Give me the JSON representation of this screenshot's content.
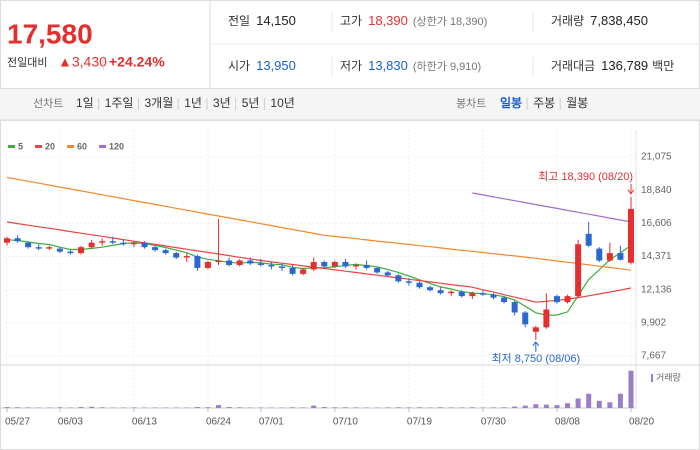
{
  "header": {
    "price": "17,580",
    "change_label": "전일대비",
    "change": "▲3,430",
    "change_pct": "+24.24%",
    "stats": [
      {
        "label": "전일",
        "value": "14,150"
      },
      {
        "label": "고가",
        "value": "18,390",
        "note": "(상한가 18,390)",
        "color": "#e52f2f"
      },
      {
        "label": "거래량",
        "value": "7,838,450"
      },
      {
        "label": "시가",
        "value": "13,950",
        "color": "#1a5fd1"
      },
      {
        "label": "저가",
        "value": "13,830",
        "note": "(하한가 9,910)",
        "color": "#1a5fd1"
      },
      {
        "label": "거래대금",
        "value": "136,789",
        "unit": "백만"
      }
    ]
  },
  "toolbar": {
    "line_label": "선차트",
    "periods": [
      "1일",
      "1주일",
      "3개월",
      "1년",
      "3년",
      "5년",
      "10년"
    ],
    "candle_label": "봉차트",
    "candle_periods": [
      "일봉",
      "주봉",
      "월봉"
    ],
    "active_candle_period": 0
  },
  "chart_data": {
    "type": "candlestick",
    "categories": [
      "05/27",
      null,
      null,
      null,
      null,
      "06/03",
      null,
      null,
      null,
      null,
      null,
      null,
      "06/13",
      null,
      null,
      null,
      null,
      null,
      null,
      "06/24",
      null,
      null,
      null,
      null,
      "07/01",
      null,
      null,
      null,
      null,
      null,
      null,
      "07/10",
      null,
      null,
      null,
      null,
      null,
      null,
      "07/19",
      null,
      null,
      null,
      null,
      null,
      null,
      "07/30",
      null,
      null,
      null,
      null,
      null,
      null,
      "08/08",
      null,
      null,
      null,
      null,
      null,
      null,
      "08/20"
    ],
    "open": [
      15300,
      15600,
      15300,
      15000,
      14900,
      14900,
      14700,
      14600,
      15000,
      15300,
      15400,
      15300,
      15200,
      15300,
      15000,
      14800,
      14600,
      14300,
      14400,
      13600,
      14000,
      14100,
      13800,
      14100,
      13900,
      13800,
      13700,
      13600,
      13200,
      13500,
      14000,
      13700,
      14000,
      13700,
      13800,
      13600,
      13300,
      13100,
      12700,
      12600,
      12300,
      12100,
      11900,
      12000,
      11700,
      11900,
      11800,
      11600,
      11300,
      10600,
      9300,
      9600,
      11700,
      11300,
      11700,
      15900,
      14900,
      14100,
      14600,
      13950
    ],
    "high": [
      15700,
      15800,
      15400,
      15200,
      15100,
      15000,
      14800,
      15100,
      15500,
      15600,
      15700,
      15500,
      15400,
      15400,
      15100,
      14900,
      14700,
      14600,
      14500,
      14100,
      16900,
      14300,
      14200,
      14300,
      14200,
      14000,
      13900,
      13800,
      13600,
      14300,
      14100,
      14100,
      14200,
      13900,
      14100,
      13700,
      13400,
      13200,
      12900,
      12700,
      12400,
      12300,
      12100,
      12100,
      12000,
      12100,
      11900,
      11700,
      11400,
      10700,
      9700,
      11900,
      11800,
      11800,
      15500,
      16700,
      15000,
      15300,
      15100,
      18390
    ],
    "low": [
      15100,
      15300,
      14900,
      14800,
      14800,
      14600,
      14500,
      14500,
      14900,
      15100,
      15200,
      15100,
      15000,
      14900,
      14700,
      14500,
      14200,
      14000,
      13400,
      13500,
      13800,
      13700,
      13700,
      13800,
      13700,
      13500,
      13400,
      13100,
      13100,
      13400,
      13600,
      13600,
      13600,
      13500,
      13500,
      13200,
      13000,
      12600,
      12400,
      12200,
      12000,
      11800,
      11700,
      11600,
      11500,
      11700,
      11500,
      11200,
      10400,
      9600,
      8750,
      9500,
      11200,
      11200,
      11600,
      15000,
      14000,
      14000,
      14100,
      13830
    ],
    "close": [
      15600,
      15400,
      15000,
      14900,
      15000,
      14700,
      14600,
      15000,
      15300,
      15400,
      15300,
      15200,
      15300,
      15000,
      14800,
      14600,
      14300,
      14400,
      13600,
      14000,
      14100,
      13800,
      14100,
      13900,
      13800,
      13700,
      13600,
      13200,
      13500,
      14000,
      13700,
      14000,
      13700,
      13800,
      13600,
      13300,
      13100,
      12700,
      12600,
      12300,
      12100,
      11900,
      12000,
      11700,
      11900,
      11800,
      11600,
      11300,
      10600,
      9800,
      9600,
      10800,
      11300,
      11700,
      15200,
      15100,
      14100,
      14600,
      14150,
      17580
    ],
    "up_color": "#e52f2f",
    "down_color": "#2a68d0",
    "ma": [
      {
        "name": "5",
        "color": "#3fae3f",
        "values": [
          15500,
          15450,
          15350,
          15250,
          15180,
          15000,
          14840,
          14840,
          14920,
          15000,
          15120,
          15240,
          15300,
          15240,
          15120,
          14980,
          14800,
          14620,
          14340,
          14180,
          14080,
          13980,
          13920,
          13980,
          13940,
          13860,
          13820,
          13640,
          13560,
          13600,
          13600,
          13680,
          13780,
          13840,
          13760,
          13680,
          13500,
          13300,
          13060,
          12800,
          12560,
          12320,
          12180,
          12000,
          11920,
          11860,
          11800,
          11660,
          11440,
          11020,
          10580,
          10420,
          10420,
          10640,
          11720,
          12820,
          13480,
          14140,
          14630,
          15110
        ]
      },
      {
        "name": "20",
        "color": "#e84545",
        "values": [
          16700,
          16590,
          16480,
          16370,
          16270,
          16160,
          16050,
          15940,
          15830,
          15730,
          15620,
          15510,
          15400,
          15290,
          15190,
          15080,
          14970,
          14860,
          14750,
          14650,
          14540,
          14430,
          14320,
          14210,
          14100,
          14010,
          13920,
          13830,
          13740,
          13650,
          13560,
          13470,
          13380,
          13290,
          13200,
          13110,
          13020,
          12930,
          12840,
          12750,
          12660,
          12570,
          12480,
          12390,
          12300,
          12130,
          11970,
          11800,
          11630,
          11470,
          11300,
          11350,
          11420,
          11500,
          11600,
          11720,
          11850,
          11980,
          12110,
          12250
        ]
      },
      {
        "name": "60",
        "color": "#f08a2a",
        "values": [
          19700,
          19570,
          19440,
          19310,
          19180,
          19050,
          18920,
          18790,
          18660,
          18530,
          18400,
          18270,
          18140,
          18010,
          17880,
          17750,
          17620,
          17490,
          17360,
          17230,
          17100,
          16970,
          16840,
          16710,
          16580,
          16450,
          16320,
          16190,
          16060,
          15930,
          15800,
          15720,
          15650,
          15570,
          15490,
          15410,
          15340,
          15260,
          15180,
          15100,
          15030,
          14950,
          14870,
          14790,
          14720,
          14640,
          14560,
          14480,
          14410,
          14330,
          14250,
          14160,
          14070,
          13980,
          13900,
          13810,
          13720,
          13630,
          13540,
          13450
        ]
      },
      {
        "name": "120",
        "color": "#9e6fd0",
        "values": [
          null,
          null,
          null,
          null,
          null,
          null,
          null,
          null,
          null,
          null,
          null,
          null,
          null,
          null,
          null,
          null,
          null,
          null,
          null,
          null,
          null,
          null,
          null,
          null,
          null,
          null,
          null,
          null,
          null,
          null,
          null,
          null,
          null,
          null,
          null,
          null,
          null,
          null,
          null,
          null,
          null,
          null,
          null,
          null,
          18650,
          18520,
          18390,
          18260,
          18130,
          18000,
          17870,
          17740,
          17610,
          17480,
          17350,
          17220,
          17090,
          16960,
          16830,
          16700
        ]
      }
    ],
    "ylim": [
      7667,
      21075
    ],
    "yticks": [
      {
        "value": 21075,
        "label": "21,075"
      },
      {
        "value": 18840,
        "label": "18,840"
      },
      {
        "value": 16606,
        "label": "16,606"
      },
      {
        "value": 14371,
        "label": "14,371"
      },
      {
        "value": 12136,
        "label": "12,136"
      },
      {
        "value": 9902,
        "label": "9,902"
      },
      {
        "value": 7667,
        "label": "7,667"
      }
    ],
    "grid": true,
    "annotations": {
      "high": "최고 18,390 (08/20)",
      "low": "최저 8,750 (08/06)"
    },
    "volume": {
      "name": "거래량",
      "color": "#9b7cc8",
      "ylim": [
        0,
        8000000
      ],
      "values": [
        200000,
        150000,
        120000,
        100000,
        100000,
        150000,
        100000,
        200000,
        250000,
        150000,
        100000,
        100000,
        120000,
        100000,
        100000,
        90000,
        100000,
        100000,
        200000,
        150000,
        600000,
        200000,
        150000,
        100000,
        100000,
        100000,
        90000,
        150000,
        120000,
        500000,
        200000,
        150000,
        150000,
        120000,
        100000,
        100000,
        120000,
        150000,
        120000,
        150000,
        100000,
        150000,
        120000,
        120000,
        150000,
        100000,
        120000,
        150000,
        300000,
        500000,
        800000,
        700000,
        600000,
        1000000,
        2000000,
        3000000,
        1500000,
        1200000,
        3000000,
        7838450
      ]
    }
  }
}
